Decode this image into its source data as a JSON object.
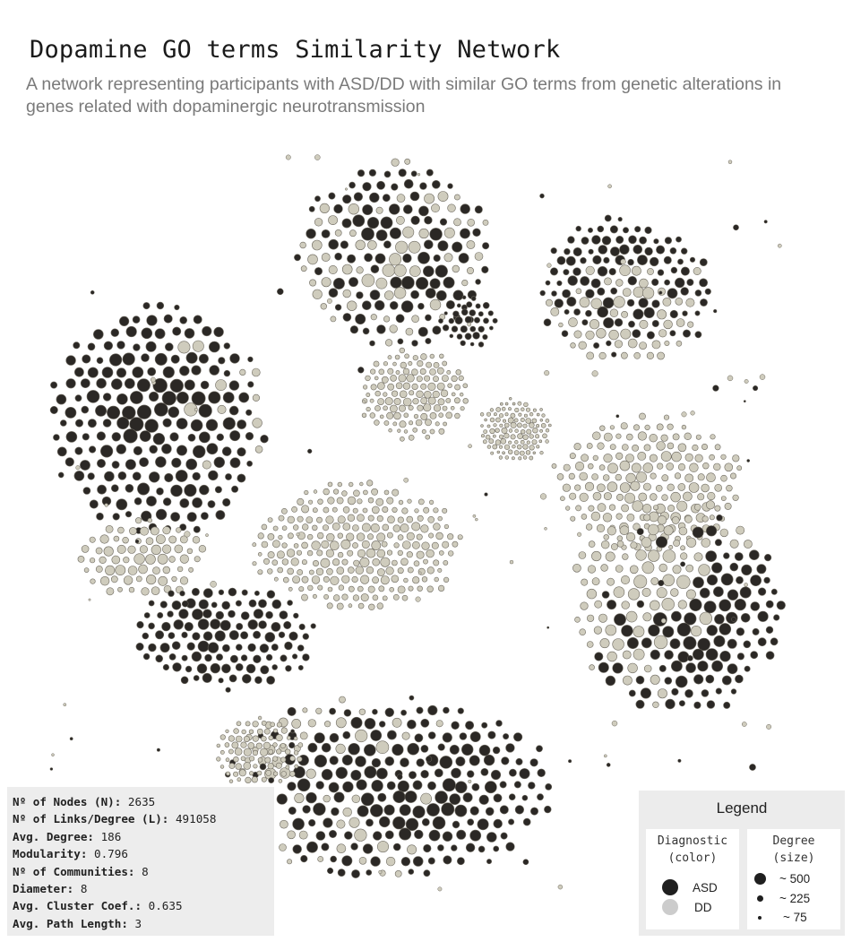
{
  "header": {
    "title": "Dopamine GO terms Similarity Network",
    "subtitle": "A network representing participants with ASD/DD with similar GO terms from genetic alterations in genes related with dopaminergic neurotransmission"
  },
  "colors": {
    "asd": "#2b2825",
    "dd": "#cfccbd",
    "stroke": "#6e6a60",
    "panel": "#ececec"
  },
  "stats": [
    {
      "label": "Nº of Nodes (N):",
      "value": "2635"
    },
    {
      "label": "Nº of Links/Degree (L):",
      "value": "491058"
    },
    {
      "label": "Avg. Degree:",
      "value": "186"
    },
    {
      "label": "Modularity:",
      "value": "0.796"
    },
    {
      "label": "Nº of Communities:",
      "value": "8"
    },
    {
      "label": "Diameter:",
      "value": "8"
    },
    {
      "label": "Avg. Cluster Coef.:",
      "value": "0.635"
    },
    {
      "label": "Avg. Path Length:",
      "value": "3"
    }
  ],
  "legend": {
    "title": "Legend",
    "diagnostic_heading": "Diagnostic\n(color)",
    "degree_heading": "Degree\n(size)",
    "diagnostic_items": [
      {
        "label": "ASD",
        "color": "#1f1f1f"
      },
      {
        "label": "DD",
        "color": "#cccccc"
      }
    ],
    "degree_items": [
      {
        "label": "~ 500"
      },
      {
        "label": "~ 225"
      },
      {
        "label": "~ 75"
      }
    ]
  }
}
